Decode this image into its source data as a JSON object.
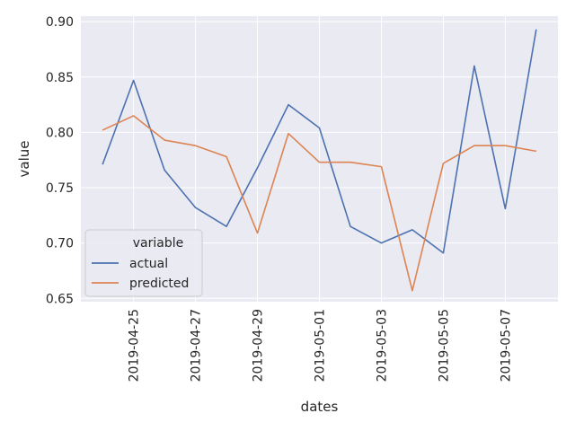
{
  "chart_data": {
    "type": "line",
    "xlabel": "dates",
    "ylabel": "value",
    "x": [
      "2019-04-24",
      "2019-04-25",
      "2019-04-26",
      "2019-04-27",
      "2019-04-28",
      "2019-04-29",
      "2019-04-30",
      "2019-05-01",
      "2019-05-02",
      "2019-05-03",
      "2019-05-04",
      "2019-05-05",
      "2019-05-06",
      "2019-05-07",
      "2019-05-08"
    ],
    "xticks": [
      "2019-04-25",
      "2019-04-27",
      "2019-04-29",
      "2019-05-01",
      "2019-05-03",
      "2019-05-05",
      "2019-05-07"
    ],
    "ylim": [
      0.647,
      0.905
    ],
    "yticks": [
      0.65,
      0.7,
      0.75,
      0.8,
      0.85,
      0.9
    ],
    "ytick_labels": [
      "0.65",
      "0.70",
      "0.75",
      "0.80",
      "0.85",
      "0.90"
    ],
    "grid": true,
    "legend": {
      "title": "variable",
      "placement": "lower-left"
    },
    "series": [
      {
        "name": "actual",
        "color": "#4c72b0",
        "values": [
          0.771,
          0.847,
          0.766,
          0.732,
          0.715,
          0.768,
          0.825,
          0.804,
          0.715,
          0.7,
          0.712,
          0.691,
          0.86,
          0.731,
          0.893
        ]
      },
      {
        "name": "predicted",
        "color": "#dd8452",
        "values": [
          0.802,
          0.815,
          0.793,
          0.788,
          0.778,
          0.709,
          0.799,
          0.773,
          0.773,
          0.769,
          0.657,
          0.772,
          0.788,
          0.788,
          0.783
        ]
      }
    ]
  }
}
